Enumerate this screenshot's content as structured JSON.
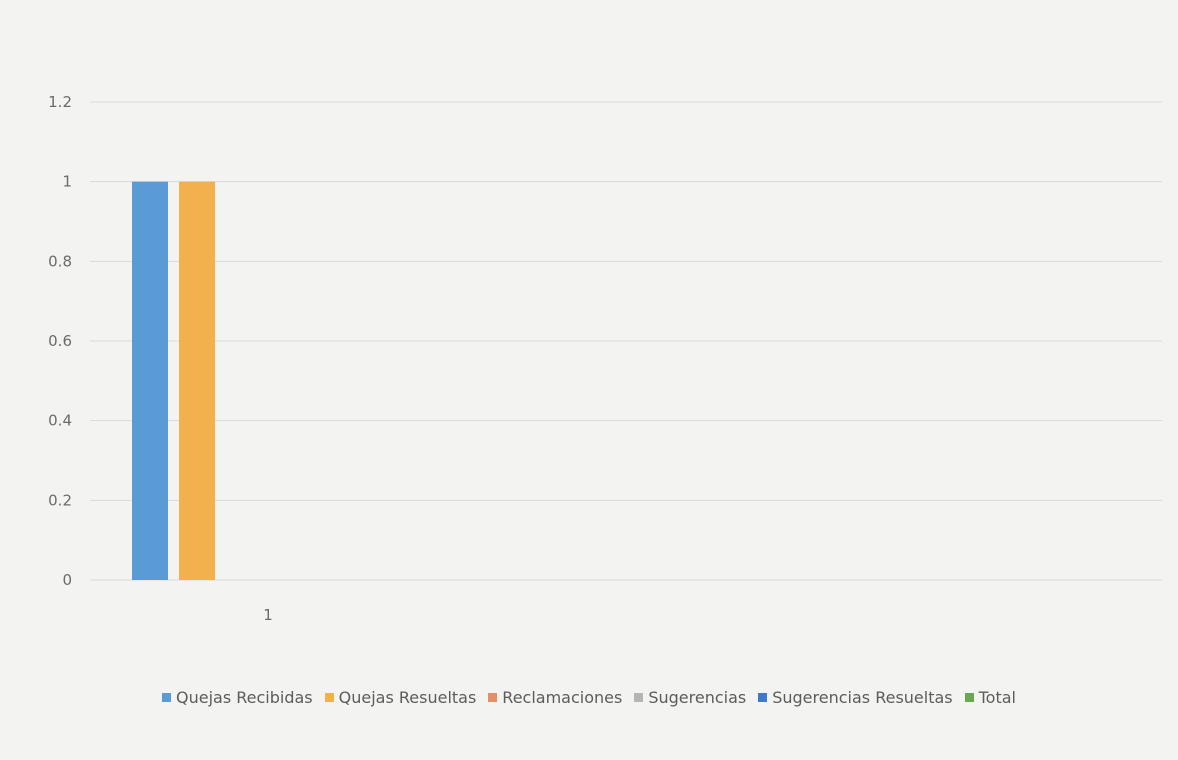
{
  "chart_data": {
    "type": "bar",
    "categories": [
      "1"
    ],
    "series": [
      {
        "name": "Quejas Recibidas",
        "values": [
          1
        ],
        "color": "#5b9bd5"
      },
      {
        "name": "Quejas Resueltas",
        "values": [
          1
        ],
        "color": "#f2b14c"
      },
      {
        "name": "Reclamaciones",
        "values": [
          0
        ],
        "color": "#e58e6a"
      },
      {
        "name": "Sugerencias",
        "values": [
          0
        ],
        "color": "#b5b5b5"
      },
      {
        "name": "Sugerencias Resueltas",
        "values": [
          0
        ],
        "color": "#3f79c8"
      },
      {
        "name": "Total",
        "values": [
          0
        ],
        "color": "#6aa84f"
      }
    ],
    "yticks": [
      "0",
      "0.2",
      "0.4",
      "0.6",
      "0.8",
      "1",
      "1.2"
    ],
    "ylim": [
      0,
      1.2
    ],
    "grid": true,
    "legend_position": "bottom"
  }
}
